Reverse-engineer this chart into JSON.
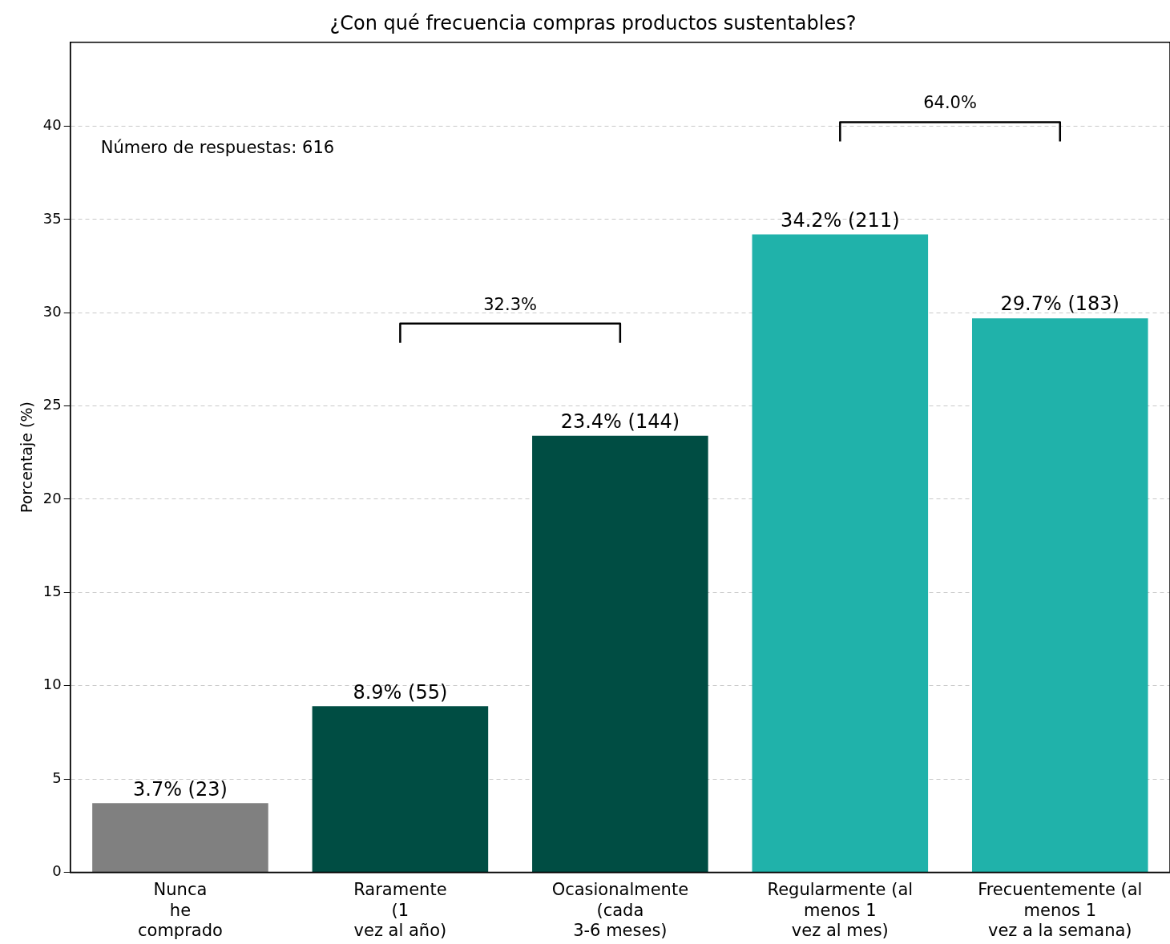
{
  "chart_data": {
    "type": "bar",
    "title": "¿Con qué frecuencia compras productos sustentables?",
    "ylabel": "Porcentaje (%)",
    "categories": [
      "Nunca\nhe\ncomprado",
      "Raramente\n(1\nvez al año)",
      "Ocasionalmente\n(cada\n3-6 meses)",
      "Regularmente (al\nmenos 1\nvez al mes)",
      "Frecuentemente (al\nmenos 1\nvez a la semana)"
    ],
    "values": [
      3.7,
      8.9,
      23.4,
      34.2,
      29.7
    ],
    "colors": [
      "#808080",
      "#004d43",
      "#004d43",
      "#20b2aa",
      "#20b2aa"
    ],
    "value_labels": [
      "3.7% (23)",
      "8.9% (55)",
      "23.4% (144)",
      "34.2% (211)",
      "29.7% (183)"
    ],
    "ylim": [
      0,
      44.5
    ],
    "yticks": [
      0,
      5,
      10,
      15,
      20,
      25,
      30,
      35,
      40
    ],
    "grid": "y",
    "legend": false,
    "annotations": [
      "Número de respuestas: 616",
      "32.3%",
      "64.0%"
    ]
  }
}
